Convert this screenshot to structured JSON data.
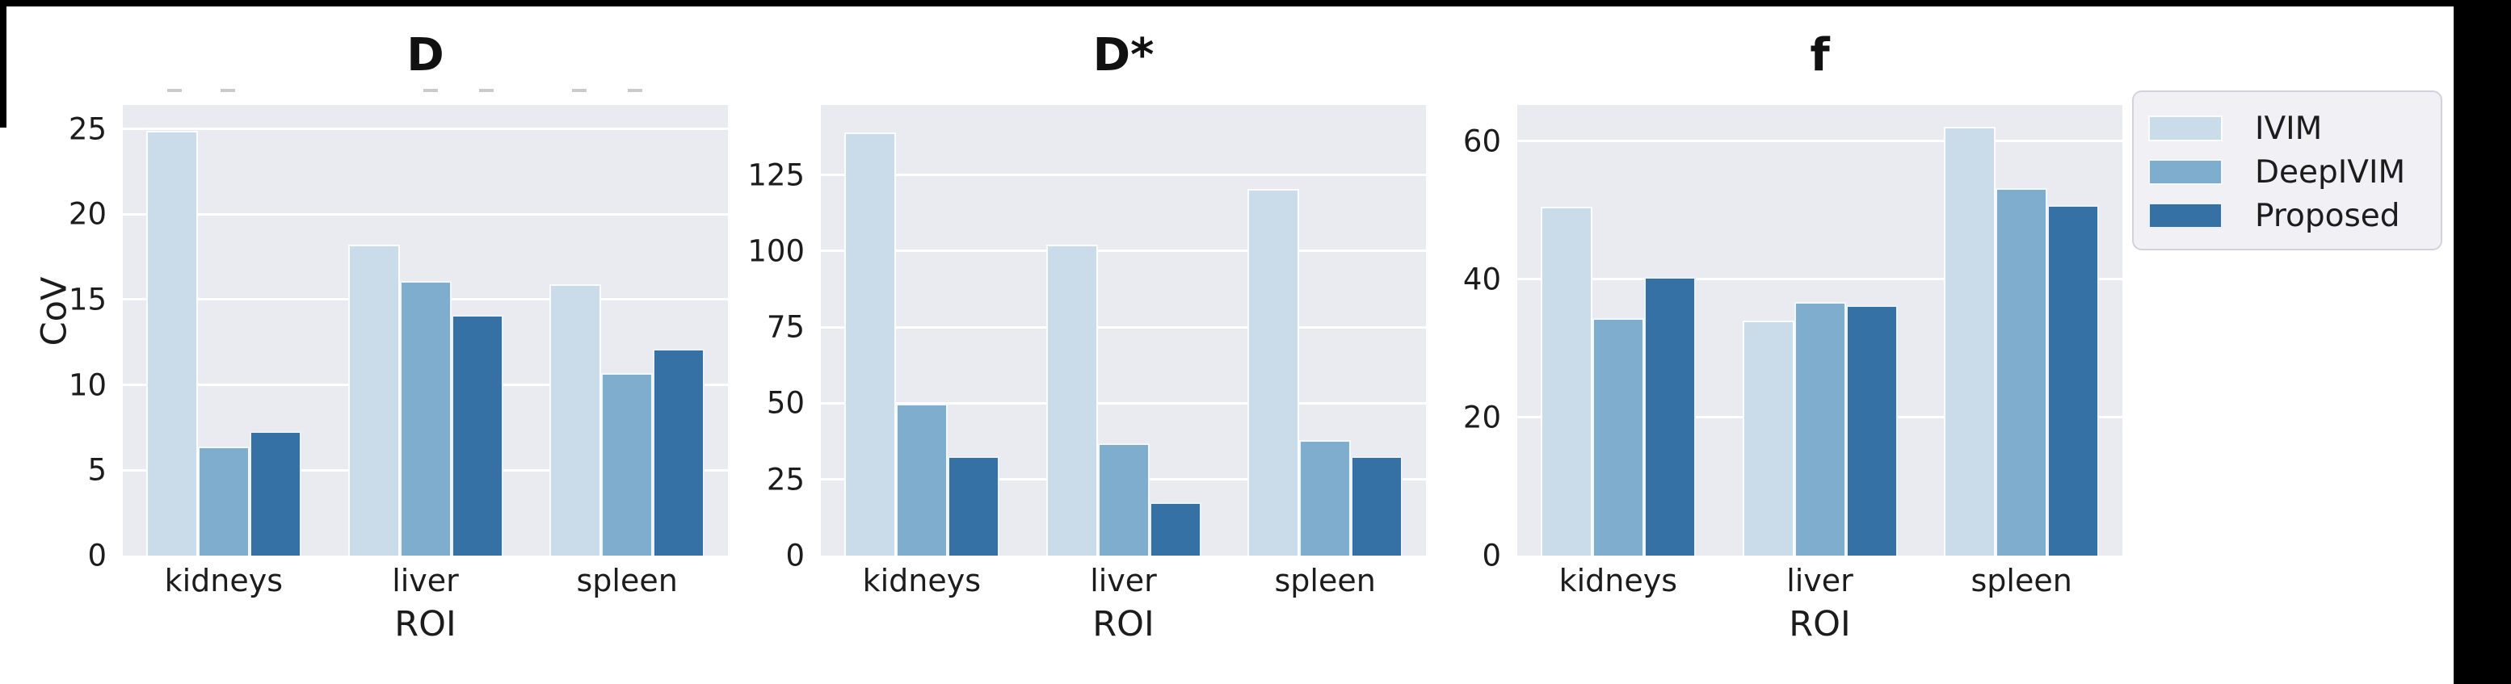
{
  "figure": {
    "ylabel_shared": "CoV",
    "xlabel_shared": "ROI"
  },
  "legend": {
    "position": "upper-right-outside",
    "entries": [
      {
        "label": "IVIM",
        "color": "#cadcea"
      },
      {
        "label": "DeepIVIM",
        "color": "#7fadce"
      },
      {
        "label": "Proposed",
        "color": "#3571a5"
      }
    ]
  },
  "colors": {
    "plot_background": "#eaeaf1",
    "gridline": "#ffffff",
    "text": "#1c1c1c",
    "edge_artifact": "#000000"
  },
  "chart_data": [
    {
      "type": "bar",
      "title": "D",
      "xlabel": "ROI",
      "ylabel": "CoV",
      "categories": [
        "kidneys",
        "liver",
        "spleen"
      ],
      "series": [
        {
          "name": "IVIM",
          "color": "#cadcea",
          "values": [
            24.9,
            18.2,
            15.9
          ]
        },
        {
          "name": "DeepIVIM",
          "color": "#7fadce",
          "values": [
            6.4,
            16.1,
            10.7
          ]
        },
        {
          "name": "Proposed",
          "color": "#3571a5",
          "values": [
            7.3,
            14.1,
            12.1
          ]
        }
      ],
      "yticks": [
        0,
        5,
        10,
        15,
        20,
        25
      ],
      "ylim": [
        0,
        26.4
      ],
      "grid": true,
      "legend_shown": false
    },
    {
      "type": "bar",
      "title": "D*",
      "xlabel": "ROI",
      "ylabel": "",
      "categories": [
        "kidneys",
        "liver",
        "spleen"
      ],
      "series": [
        {
          "name": "IVIM",
          "color": "#cadcea",
          "values": [
            139,
            102,
            120.5
          ]
        },
        {
          "name": "DeepIVIM",
          "color": "#7fadce",
          "values": [
            50,
            37,
            38
          ]
        },
        {
          "name": "Proposed",
          "color": "#3571a5",
          "values": [
            32.5,
            17.5,
            32.5
          ]
        }
      ],
      "yticks": [
        0,
        25,
        50,
        75,
        100,
        125
      ],
      "ylim": [
        0,
        148
      ],
      "grid": true,
      "legend_shown": false
    },
    {
      "type": "bar",
      "title": "f",
      "xlabel": "ROI",
      "ylabel": "",
      "categories": [
        "kidneys",
        "liver",
        "spleen"
      ],
      "series": [
        {
          "name": "IVIM",
          "color": "#cadcea",
          "values": [
            50.5,
            34,
            62
          ]
        },
        {
          "name": "DeepIVIM",
          "color": "#7fadce",
          "values": [
            34.3,
            36.7,
            53.2
          ]
        },
        {
          "name": "Proposed",
          "color": "#3571a5",
          "values": [
            40.3,
            36.2,
            50.7
          ]
        }
      ],
      "yticks": [
        0,
        20,
        40,
        60
      ],
      "ylim": [
        0,
        65.2
      ],
      "grid": true,
      "legend_shown": true
    }
  ]
}
